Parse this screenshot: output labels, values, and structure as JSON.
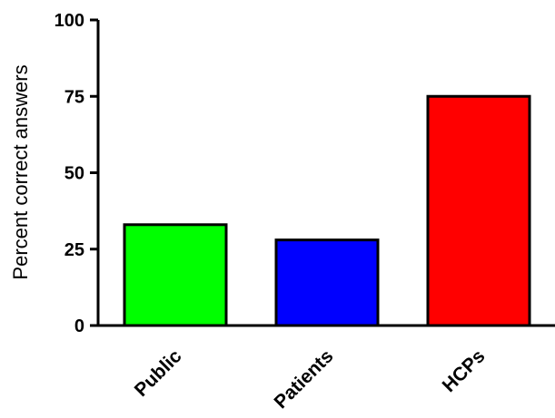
{
  "chart_data": {
    "type": "bar",
    "categories": [
      "Public",
      "Patients",
      "HCPs"
    ],
    "values": [
      33,
      28,
      75
    ],
    "bar_colors": [
      "#00ff00",
      "#0000ff",
      "#ff0000"
    ],
    "outline_color": "#000000",
    "title": "",
    "xlabel": "",
    "ylabel": "Percent correct answers",
    "ylim": [
      0,
      100
    ],
    "yticks": [
      0,
      25,
      50,
      75,
      100
    ],
    "grid": false,
    "legend": "none"
  }
}
